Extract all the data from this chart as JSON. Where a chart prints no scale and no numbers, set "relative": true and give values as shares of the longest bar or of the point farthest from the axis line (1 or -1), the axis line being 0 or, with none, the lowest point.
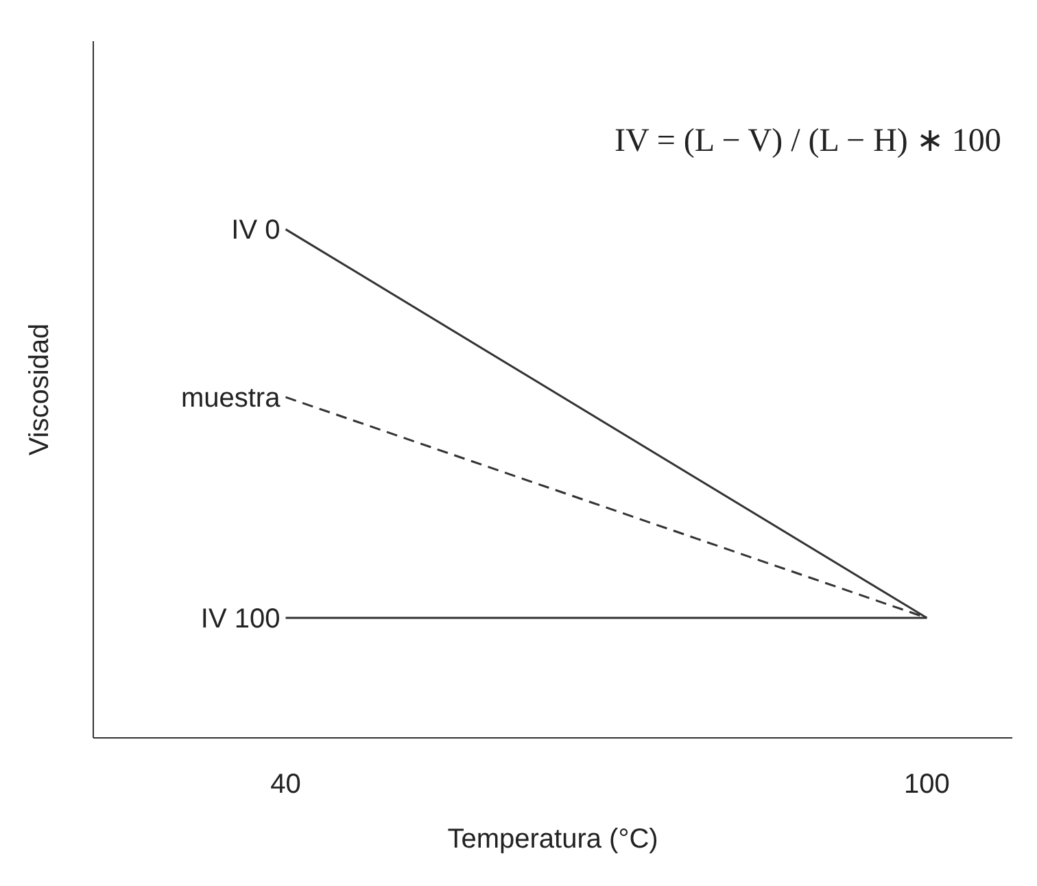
{
  "chart_data": {
    "type": "line",
    "relative": true,
    "xlabel": "Temperatura (°C)",
    "ylabel": "Viscosidad",
    "xlim": [
      22,
      108
    ],
    "xticks": [
      40,
      100
    ],
    "x": [
      40,
      100
    ],
    "annotations": [
      "IV = (L − V) / (L − H) ∗ 100"
    ],
    "series": [
      {
        "name": "IV 0",
        "color": "#333333",
        "values": [
          1,
          0.236
        ],
        "line_style": "solid"
      },
      {
        "name": "muestra",
        "color": "#333333",
        "values": [
          0.67,
          0.236
        ],
        "line_style": "dashed"
      },
      {
        "name": "IV 100",
        "color": "#333333",
        "values": [
          0.236,
          0.236
        ],
        "line_style": "solid"
      }
    ]
  }
}
